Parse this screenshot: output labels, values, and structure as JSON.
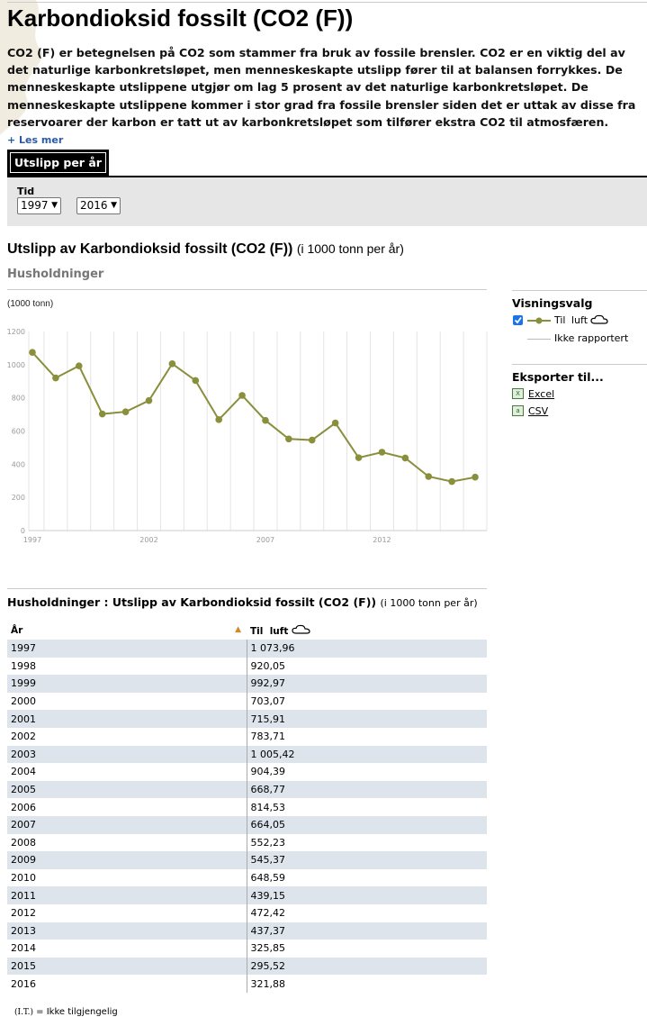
{
  "page": {
    "title": "Karbondioksid fossilt (CO2 (F))",
    "intro": "CO2 (F) er betegnelsen på CO2 som stammer fra bruk av fossile brensler. CO2 er en viktig del av det naturlige karbonkretsløpet, men menneskeskapte utslipp fører til at balansen forrykkes. De menneskeskapte utslippene utgjør om lag 5 prosent av det naturlige karbonkretsløpet. De menneskeskapte utslippene kommer i stor grad fra fossile brensler siden det er uttak av disse fra reservoarer der karbon er tatt ut av karbonkretsløpet som tilfører ekstra CO2 til atmosfæren.",
    "more_link": "+ Les mer"
  },
  "tabs": [
    {
      "label": "Utslipp per år",
      "active": true
    }
  ],
  "filter": {
    "label": "Tid",
    "from": "1997",
    "to": "2016"
  },
  "chart_header": {
    "title": "Utslipp av Karbondioksid fossilt (CO2 (F))",
    "unit": "(i 1000 tonn per år)",
    "subtitle": "Husholdninger"
  },
  "options": {
    "title": "Visningsvalg",
    "series_checked": true,
    "series_label_1": "Til",
    "series_label_2": "luft",
    "series_icon": "cloud-icon",
    "not_reported": "Ikke rapportert"
  },
  "export": {
    "title": "Eksporter til...",
    "excel": "Excel",
    "csv": "CSV"
  },
  "chart_data": {
    "type": "line",
    "ylabel": "(1000 tonn)",
    "x": [
      1997,
      1998,
      1999,
      2000,
      2001,
      2002,
      2003,
      2004,
      2005,
      2006,
      2007,
      2008,
      2009,
      2010,
      2011,
      2012,
      2013,
      2014,
      2015,
      2016
    ],
    "x_tick_labels": [
      "1997",
      "2002",
      "2007",
      "2012"
    ],
    "y_tick_labels": [
      "0",
      "200",
      "400",
      "600",
      "800",
      "1000",
      "1200"
    ],
    "ylim": [
      0,
      1200
    ],
    "grid": "vertical",
    "series": [
      {
        "values": [
          1073.96,
          920.05,
          992.97,
          703.07,
          715.91,
          783.71,
          1005.42,
          904.39,
          668.77,
          814.53,
          664.05,
          552.23,
          545.37,
          648.59,
          439.15,
          472.42,
          437.37,
          325.85,
          295.52,
          321.88
        ],
        "color": "#8a8f3c"
      }
    ]
  },
  "table": {
    "title": "Husholdninger : Utslipp av Karbondioksid fossilt (CO2 (F))",
    "unit": "(i 1000 tonn per år)",
    "col_year": "År",
    "col_value_1": "Til",
    "col_value_2": "luft",
    "rows": [
      [
        "1997",
        "1 073,96"
      ],
      [
        "1998",
        "920,05"
      ],
      [
        "1999",
        "992,97"
      ],
      [
        "2000",
        "703,07"
      ],
      [
        "2001",
        "715,91"
      ],
      [
        "2002",
        "783,71"
      ],
      [
        "2003",
        "1 005,42"
      ],
      [
        "2004",
        "904,39"
      ],
      [
        "2005",
        "668,77"
      ],
      [
        "2006",
        "814,53"
      ],
      [
        "2007",
        "664,05"
      ],
      [
        "2008",
        "552,23"
      ],
      [
        "2009",
        "545,37"
      ],
      [
        "2010",
        "648,59"
      ],
      [
        "2011",
        "439,15"
      ],
      [
        "2012",
        "472,42"
      ],
      [
        "2013",
        "437,37"
      ],
      [
        "2014",
        "325,85"
      ],
      [
        "2015",
        "295,52"
      ],
      [
        "2016",
        "321,88"
      ]
    ]
  },
  "footnote": {
    "abbr": "(I.T.)",
    "text": "= Ikke tilgjengelig"
  }
}
